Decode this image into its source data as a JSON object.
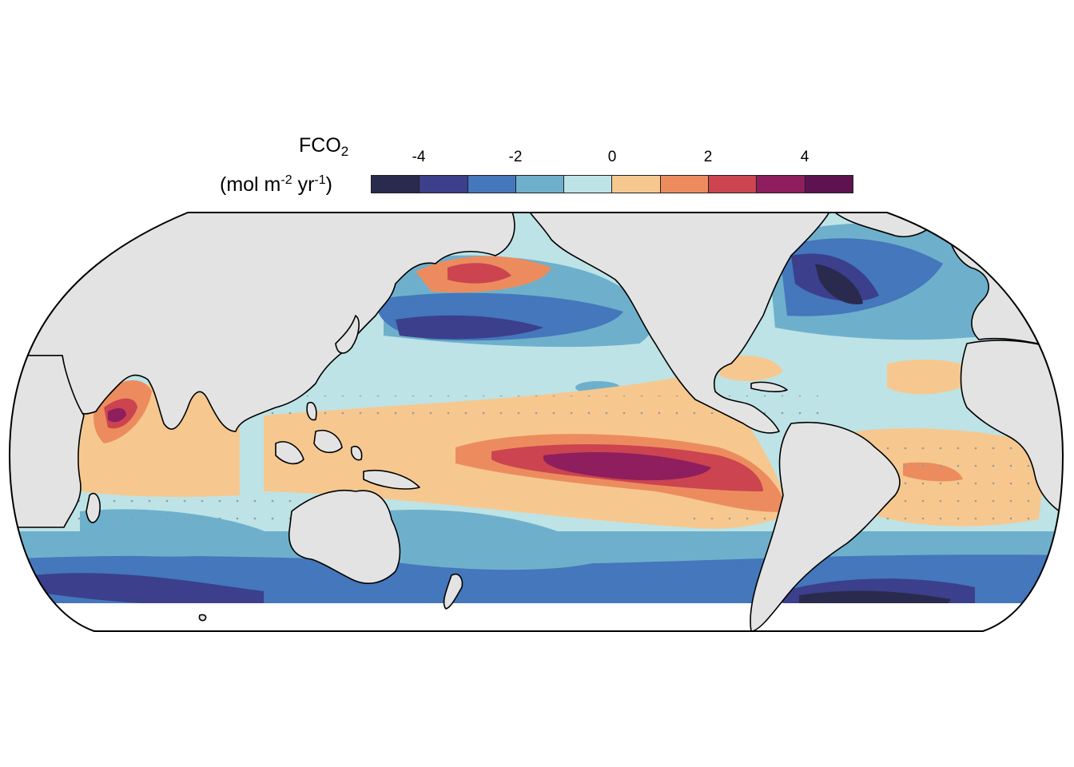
{
  "legend": {
    "variable": "FCO",
    "variable_subscript": "2",
    "units_prefix": "(mol m",
    "units_exp1": "-2",
    "units_mid": " yr",
    "units_exp2": "-1",
    "units_suffix": ")",
    "ticks": [
      "-4",
      "-2",
      "0",
      "2",
      "4"
    ],
    "bins": [
      {
        "from": -5,
        "to": -4,
        "color": "#2a2a4e"
      },
      {
        "from": -4,
        "to": -3,
        "color": "#3b3f8c"
      },
      {
        "from": -3,
        "to": -2,
        "color": "#4477bb"
      },
      {
        "from": -2,
        "to": -1,
        "color": "#6eb0cc"
      },
      {
        "from": -1,
        "to": 0,
        "color": "#bde3e6"
      },
      {
        "from": 0,
        "to": 1,
        "color": "#f6c88f"
      },
      {
        "from": 1,
        "to": 2,
        "color": "#ec8c5e"
      },
      {
        "from": 2,
        "to": 3,
        "color": "#cc4450"
      },
      {
        "from": 3,
        "to": 4,
        "color": "#8e1e5e"
      },
      {
        "from": 4,
        "to": 5,
        "color": "#5e1350"
      }
    ]
  },
  "map": {
    "projection": "Equal Earth (Pacific-centred)",
    "land_color": "#e3e3e3",
    "coastline_color": "#000000",
    "stipple_color": "#999999"
  }
}
